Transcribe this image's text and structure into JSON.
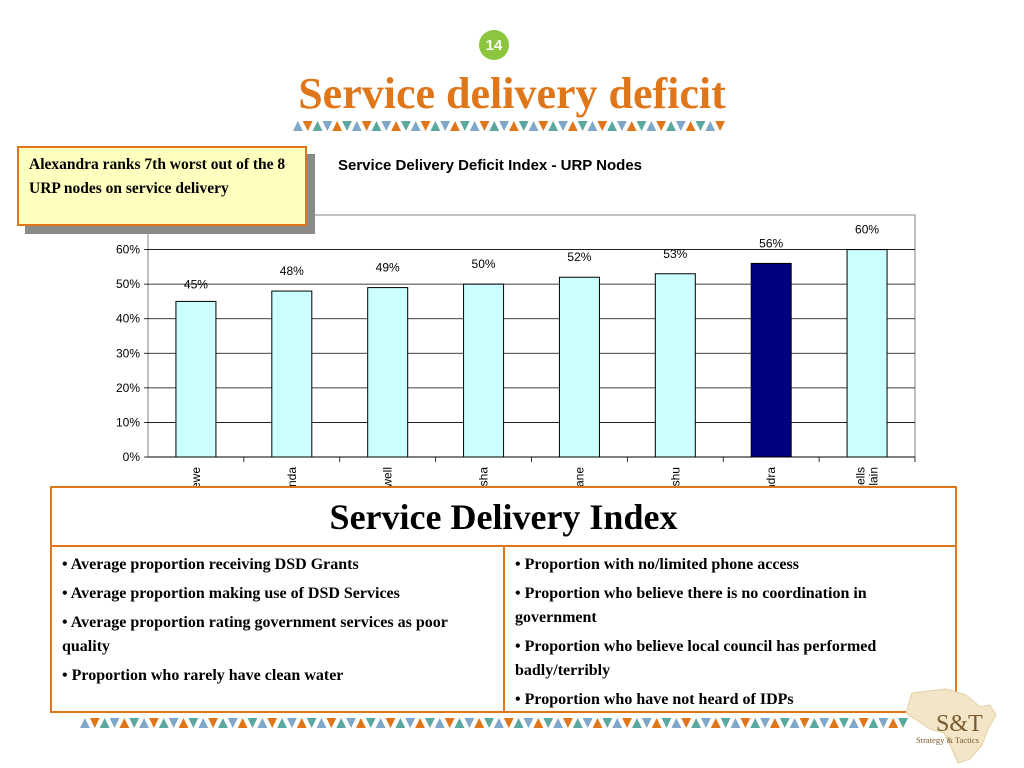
{
  "slide": {
    "page_number": "14",
    "title": "Service delivery deficit"
  },
  "callout": {
    "text": "Alexandra ranks 7th worst out of the 8 URP nodes on service delivery"
  },
  "chart_data": {
    "type": "bar",
    "title": "Service Delivery Deficit  Index - URP Nodes",
    "categories": [
      "Galeshewe",
      "Inanda",
      "Motherwell",
      "Khayelitsha",
      "Mdantsane",
      "KwaMashu",
      "Alexandra",
      "Mitchells Plain"
    ],
    "values": [
      45,
      48,
      49,
      50,
      52,
      53,
      56,
      60
    ],
    "data_labels": [
      "45%",
      "48%",
      "49%",
      "50%",
      "52%",
      "53%",
      "56%",
      "60%"
    ],
    "yticks": [
      "0%",
      "10%",
      "20%",
      "30%",
      "40%",
      "50%",
      "60%"
    ],
    "ylim": [
      0,
      70
    ],
    "xlabel": "",
    "ylabel": "",
    "grid": true,
    "highlight_category": "Alexandra",
    "colors": {
      "bar": "#ccffff",
      "highlight": "#000080",
      "outline": "#000000",
      "plot_border": "#808080"
    }
  },
  "index_table": {
    "header": "Service Delivery Index",
    "left_items": [
      "• Average proportion receiving DSD Grants",
      "• Average proportion making use of DSD Services",
      "• Average proportion rating government services as poor quality",
      "• Proportion who rarely have clean water"
    ],
    "right_items": [
      "• Proportion with no/limited phone access",
      "• Proportion who believe there is no coordination in government",
      "• Proportion who believe local council has performed badly/terribly",
      "• Proportion who have not heard of IDPs"
    ]
  },
  "logo": {
    "brand": "S&T",
    "tagline": "Strategy & Tactics"
  },
  "theme": {
    "accent": "#e0761a",
    "badge": "#8cc63f",
    "callout_fill": "#ffffc0",
    "deco_blue": "#7fa7c9",
    "deco_orange": "#e0761a",
    "deco_teal": "#5aa8a0"
  }
}
